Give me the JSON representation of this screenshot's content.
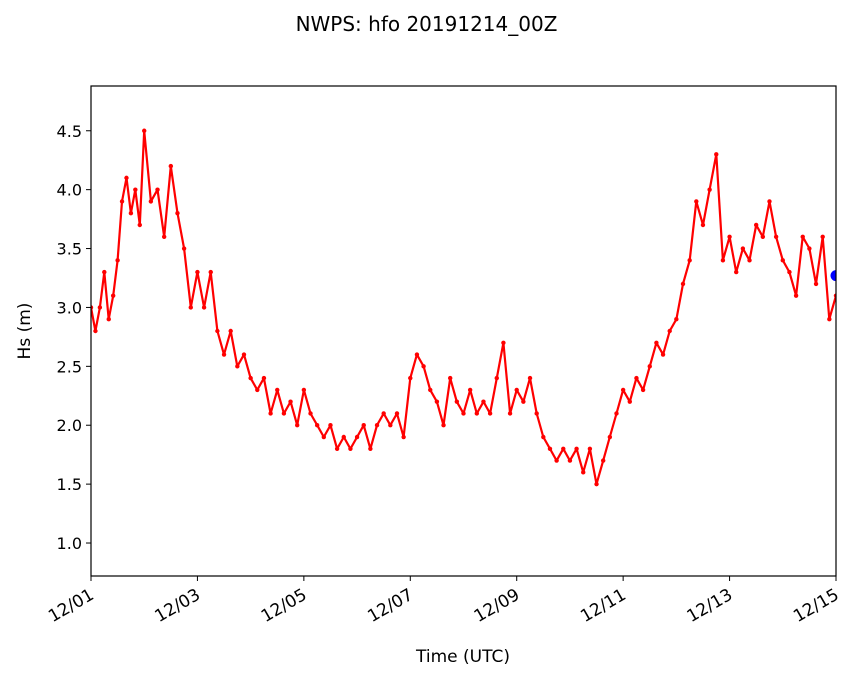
{
  "chart_data": {
    "type": "line",
    "title": "NWPS: hfo 20191214_00Z",
    "xlabel": "Time (UTC)",
    "ylabel": "Hs (m)",
    "xlim": [
      "2019-12-01",
      "2019-12-15"
    ],
    "ylim": [
      0.72,
      4.88
    ],
    "xticks": [
      {
        "date": "2019-12-01",
        "label": "12/01"
      },
      {
        "date": "2019-12-03",
        "label": "12/03"
      },
      {
        "date": "2019-12-05",
        "label": "12/05"
      },
      {
        "date": "2019-12-07",
        "label": "12/07"
      },
      {
        "date": "2019-12-09",
        "label": "12/09"
      },
      {
        "date": "2019-12-11",
        "label": "12/11"
      },
      {
        "date": "2019-12-13",
        "label": "12/13"
      },
      {
        "date": "2019-12-15",
        "label": "12/15"
      }
    ],
    "yticks": [
      1.0,
      1.5,
      2.0,
      2.5,
      3.0,
      3.5,
      4.0,
      4.5
    ],
    "ytick_labels": [
      "1.0",
      "1.5",
      "2.0",
      "2.5",
      "3.0",
      "3.5",
      "4.0",
      "4.5"
    ],
    "grid": false,
    "series": [
      {
        "color": "#ff0000",
        "marker": "dot",
        "x": [
          "2019-12-01T00:00",
          "2019-12-01T02:00",
          "2019-12-01T04:00",
          "2019-12-01T06:00",
          "2019-12-01T08:00",
          "2019-12-01T10:00",
          "2019-12-01T12:00",
          "2019-12-01T14:00",
          "2019-12-01T16:00",
          "2019-12-01T18:00",
          "2019-12-01T20:00",
          "2019-12-01T22:00",
          "2019-12-02T00:00",
          "2019-12-02T03:00",
          "2019-12-02T06:00",
          "2019-12-02T09:00",
          "2019-12-02T12:00",
          "2019-12-02T15:00",
          "2019-12-02T18:00",
          "2019-12-02T21:00",
          "2019-12-03T00:00",
          "2019-12-03T03:00",
          "2019-12-03T06:00",
          "2019-12-03T09:00",
          "2019-12-03T12:00",
          "2019-12-03T15:00",
          "2019-12-03T18:00",
          "2019-12-03T21:00",
          "2019-12-04T00:00",
          "2019-12-04T03:00",
          "2019-12-04T06:00",
          "2019-12-04T09:00",
          "2019-12-04T12:00",
          "2019-12-04T15:00",
          "2019-12-04T18:00",
          "2019-12-04T21:00",
          "2019-12-05T00:00",
          "2019-12-05T03:00",
          "2019-12-05T06:00",
          "2019-12-05T09:00",
          "2019-12-05T12:00",
          "2019-12-05T15:00",
          "2019-12-05T18:00",
          "2019-12-05T21:00",
          "2019-12-06T00:00",
          "2019-12-06T03:00",
          "2019-12-06T06:00",
          "2019-12-06T09:00",
          "2019-12-06T12:00",
          "2019-12-06T15:00",
          "2019-12-06T18:00",
          "2019-12-06T21:00",
          "2019-12-07T00:00",
          "2019-12-07T03:00",
          "2019-12-07T06:00",
          "2019-12-07T09:00",
          "2019-12-07T12:00",
          "2019-12-07T15:00",
          "2019-12-07T18:00",
          "2019-12-07T21:00",
          "2019-12-08T00:00",
          "2019-12-08T03:00",
          "2019-12-08T06:00",
          "2019-12-08T09:00",
          "2019-12-08T12:00",
          "2019-12-08T15:00",
          "2019-12-08T18:00",
          "2019-12-08T21:00",
          "2019-12-09T00:00",
          "2019-12-09T03:00",
          "2019-12-09T06:00",
          "2019-12-09T09:00",
          "2019-12-09T12:00",
          "2019-12-09T15:00",
          "2019-12-09T18:00",
          "2019-12-09T21:00",
          "2019-12-10T00:00",
          "2019-12-10T03:00",
          "2019-12-10T06:00",
          "2019-12-10T09:00",
          "2019-12-10T12:00",
          "2019-12-10T15:00",
          "2019-12-10T18:00",
          "2019-12-10T21:00",
          "2019-12-11T00:00",
          "2019-12-11T03:00",
          "2019-12-11T06:00",
          "2019-12-11T09:00",
          "2019-12-11T12:00",
          "2019-12-11T15:00",
          "2019-12-11T18:00",
          "2019-12-11T21:00",
          "2019-12-12T00:00",
          "2019-12-12T03:00",
          "2019-12-12T06:00",
          "2019-12-12T09:00",
          "2019-12-12T12:00",
          "2019-12-12T15:00",
          "2019-12-12T18:00",
          "2019-12-12T21:00",
          "2019-12-13T00:00",
          "2019-12-13T03:00",
          "2019-12-13T06:00",
          "2019-12-13T09:00",
          "2019-12-13T12:00",
          "2019-12-13T15:00",
          "2019-12-13T18:00",
          "2019-12-13T21:00",
          "2019-12-14T00:00",
          "2019-12-14T03:00",
          "2019-12-14T06:00",
          "2019-12-14T09:00",
          "2019-12-14T12:00",
          "2019-12-14T15:00",
          "2019-12-14T18:00",
          "2019-12-14T21:00",
          "2019-12-15T00:00"
        ],
        "y": [
          3.0,
          2.8,
          3.0,
          3.3,
          2.9,
          3.1,
          3.4,
          3.9,
          4.1,
          3.8,
          4.0,
          3.7,
          4.5,
          3.9,
          4.0,
          3.6,
          4.2,
          3.8,
          3.5,
          3.0,
          3.3,
          3.0,
          3.3,
          2.8,
          2.6,
          2.8,
          2.5,
          2.6,
          2.4,
          2.3,
          2.4,
          2.1,
          2.3,
          2.1,
          2.2,
          2.0,
          2.3,
          2.1,
          2.0,
          1.9,
          2.0,
          1.8,
          1.9,
          1.8,
          1.9,
          2.0,
          1.8,
          2.0,
          2.1,
          2.0,
          2.1,
          1.9,
          2.4,
          2.6,
          2.5,
          2.3,
          2.2,
          2.0,
          2.4,
          2.2,
          2.1,
          2.3,
          2.1,
          2.2,
          2.1,
          2.4,
          2.7,
          2.1,
          2.3,
          2.2,
          2.4,
          2.1,
          1.9,
          1.8,
          1.7,
          1.8,
          1.7,
          1.8,
          1.6,
          1.8,
          1.5,
          1.7,
          1.9,
          2.1,
          2.3,
          2.2,
          2.4,
          2.3,
          2.5,
          2.7,
          2.6,
          2.8,
          2.9,
          3.2,
          3.4,
          3.9,
          3.7,
          4.0,
          4.3,
          3.4,
          3.6,
          3.3,
          3.5,
          3.4,
          3.7,
          3.6,
          3.9,
          3.6,
          3.4,
          3.3,
          3.1,
          3.6,
          3.5,
          3.2,
          3.6,
          2.9,
          3.1
        ]
      }
    ],
    "marker_point": {
      "x": "2019-12-15T00:00",
      "y": 3.27,
      "color": "#0000ff"
    }
  }
}
